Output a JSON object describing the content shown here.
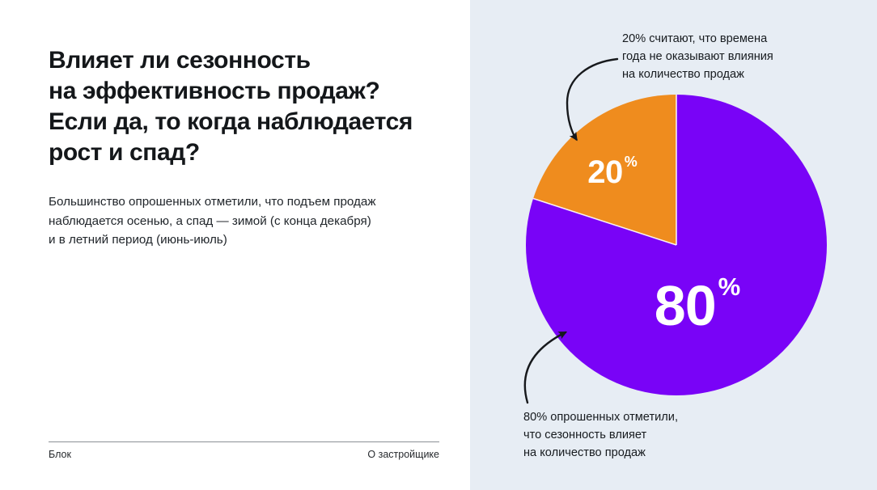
{
  "left_panel": {
    "title": {
      "lines": [
        "Влияет ли сезонность",
        "на эффективность продаж?",
        "Если да, то когда наблюдается",
        "рост и спад?"
      ]
    },
    "subtitle": {
      "lines": [
        "Большинство опрошенных отметили, что подъем продаж",
        "наблюдается осенью, а спад — зимой (с конца декабря)",
        "и в летний период (июнь-июль)"
      ]
    },
    "footer": {
      "left_label": "Блок",
      "right_label": "О застройщике"
    }
  },
  "chart_panel": {
    "annotations": {
      "top": {
        "lines": [
          "20% считают, что времена",
          "года не оказывают влияния",
          "на количество продаж"
        ]
      },
      "bottom": {
        "lines": [
          "80% опрошенных отметили,",
          "что сезонность влияет",
          "на количество продаж"
        ]
      }
    }
  },
  "chart_data": {
    "type": "pie",
    "title": "",
    "slices": [
      {
        "value": 80,
        "label": "80",
        "unit": "%",
        "color": "#7903f7"
      },
      {
        "value": 20,
        "label": "20",
        "unit": "%",
        "color": "#ef8c1e"
      }
    ],
    "start_angle_deg": -90,
    "direction": "clockwise",
    "separator_color": "#ffffff",
    "legend": "none",
    "labels_inside": true
  },
  "colors": {
    "left_bg": "#ffffff",
    "right_bg": "#e7edf4",
    "title_text": "#14171a",
    "body_text": "#21262b",
    "annotation_text": "#171b1f",
    "arrow": "#17191c",
    "divider": "#8b9095",
    "slice_label_text": "#ffffff"
  }
}
